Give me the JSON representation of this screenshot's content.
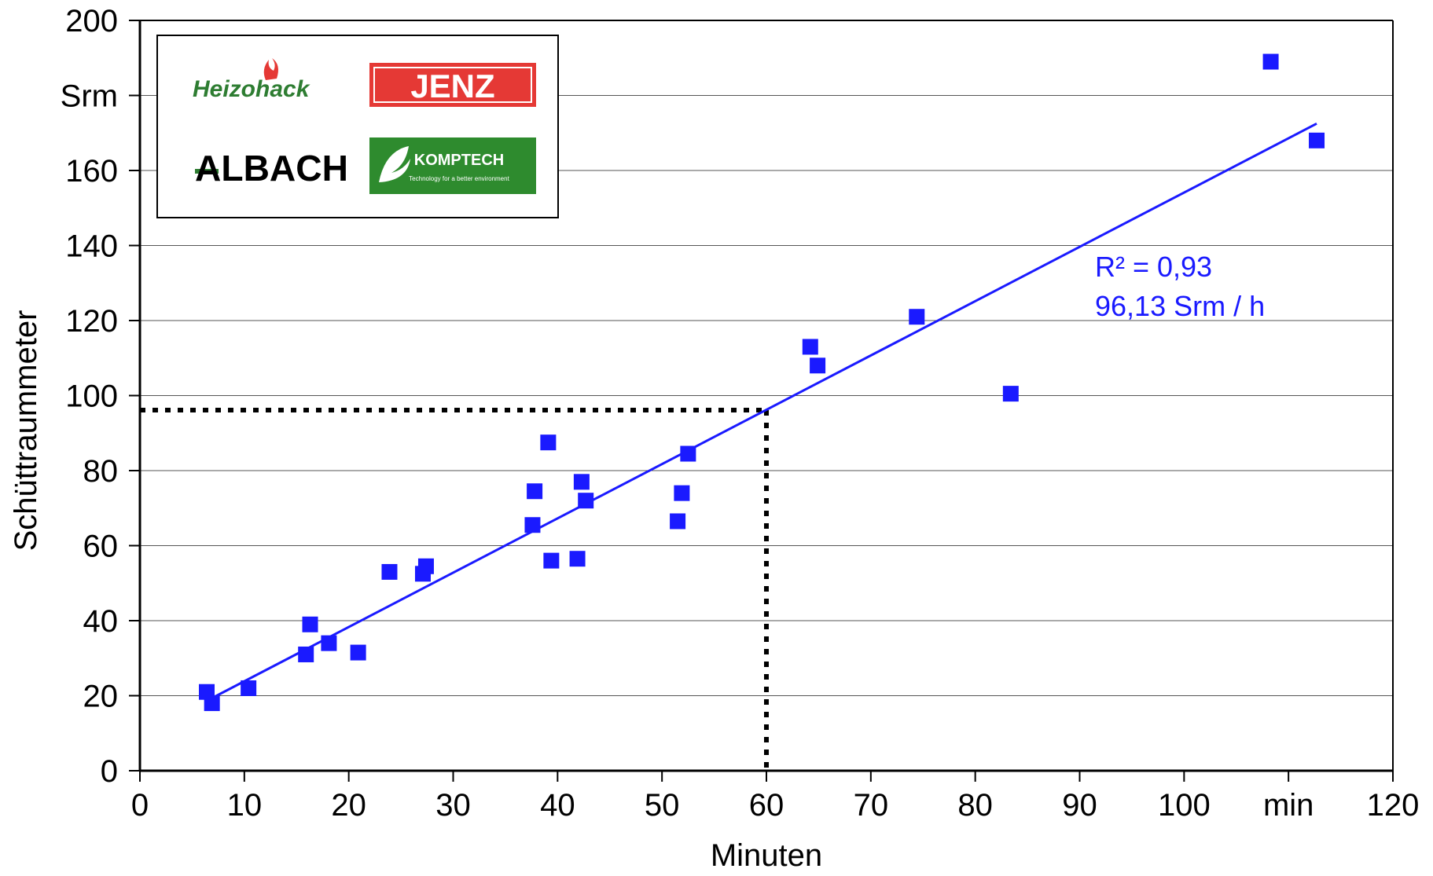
{
  "chart_data": {
    "type": "scatter",
    "title": "",
    "xlabel": "Minuten",
    "ylabel": "Schüttraummeter",
    "xlim": [
      0,
      120
    ],
    "ylim": [
      0,
      200
    ],
    "x_ticks": [
      0,
      10,
      20,
      30,
      40,
      50,
      60,
      70,
      80,
      90,
      100,
      110,
      120
    ],
    "x_tick_labels": [
      "0",
      "10",
      "20",
      "30",
      "40",
      "50",
      "60",
      "70",
      "80",
      "90",
      "100",
      "min",
      "120"
    ],
    "y_ticks": [
      0,
      20,
      40,
      60,
      80,
      100,
      120,
      140,
      160,
      180,
      200
    ],
    "y_tick_labels": [
      "0",
      "20",
      "40",
      "60",
      "80",
      "100",
      "120",
      "140",
      "160",
      "Srm",
      "200"
    ],
    "grid": "horizontal",
    "marker_color": "#1a1aff",
    "points": [
      {
        "x": 6.4,
        "y": 21
      },
      {
        "x": 6.9,
        "y": 18
      },
      {
        "x": 10.4,
        "y": 22
      },
      {
        "x": 15.9,
        "y": 31
      },
      {
        "x": 16.3,
        "y": 39
      },
      {
        "x": 18.1,
        "y": 34
      },
      {
        "x": 20.9,
        "y": 31.5
      },
      {
        "x": 23.9,
        "y": 53
      },
      {
        "x": 27.1,
        "y": 52.5
      },
      {
        "x": 27.4,
        "y": 54.5
      },
      {
        "x": 37.6,
        "y": 65.5
      },
      {
        "x": 37.8,
        "y": 74.5
      },
      {
        "x": 39.1,
        "y": 87.5
      },
      {
        "x": 39.4,
        "y": 56
      },
      {
        "x": 41.9,
        "y": 56.5
      },
      {
        "x": 42.3,
        "y": 77
      },
      {
        "x": 42.7,
        "y": 72
      },
      {
        "x": 51.5,
        "y": 66.5
      },
      {
        "x": 51.9,
        "y": 74
      },
      {
        "x": 52.5,
        "y": 84.5
      },
      {
        "x": 64.2,
        "y": 113
      },
      {
        "x": 64.9,
        "y": 108
      },
      {
        "x": 74.4,
        "y": 121
      },
      {
        "x": 83.4,
        "y": 100.5
      },
      {
        "x": 108.3,
        "y": 189
      },
      {
        "x": 112.7,
        "y": 168
      }
    ],
    "trendline": {
      "x": [
        7.0,
        112.7
      ],
      "y": [
        19.5,
        172.5
      ],
      "color": "#1a1aff"
    },
    "reference_line": {
      "x": 60,
      "y": 96.13,
      "style": "dotted",
      "color": "#000000"
    },
    "annotations": {
      "r_squared": "R² = 0,93",
      "rate": "96,13 Srm / h"
    }
  },
  "logos": {
    "heizohack": "Heizohack",
    "jenz": "JENZ",
    "albach": "ALBACH",
    "komptech": "KOMPTECH",
    "komptech_tagline": "Technology for a better environment",
    "colors": {
      "heizohack": "#2e7d32",
      "jenz": "#e53935",
      "albach": "#000000",
      "albach_accent": "#2e7d32",
      "komptech_bg": "#2e8b2e"
    }
  }
}
